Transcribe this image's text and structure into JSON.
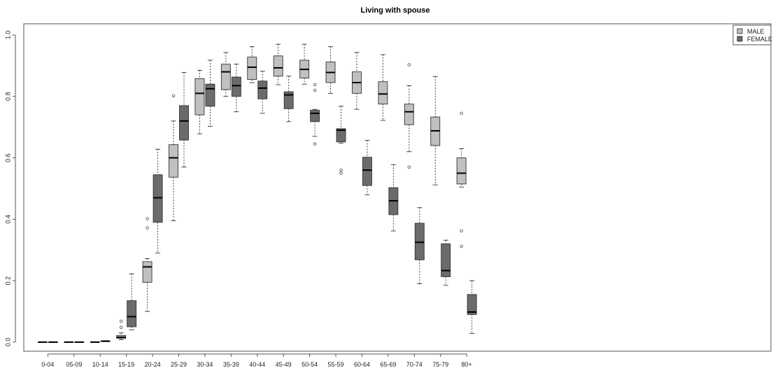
{
  "chart_data": {
    "type": "box",
    "title": "Living with spouse",
    "xlabel": "",
    "ylabel": "",
    "ylim": [
      0,
      1
    ],
    "y_ticks": [
      "0.0",
      "0.2",
      "0.4",
      "0.6",
      "0.8",
      "1.0"
    ],
    "categories": [
      "0-04",
      "05-09",
      "10-14",
      "15-19",
      "20-24",
      "25-29",
      "30-34",
      "35-39",
      "40-44",
      "45-49",
      "50-54",
      "55-59",
      "60-64",
      "65-69",
      "70-74",
      "75-79",
      "80+"
    ],
    "legend": {
      "position": "top-right"
    },
    "series": [
      {
        "name": "MALE",
        "color": "#c0c0c0",
        "boxes": [
          {
            "min": 0.0,
            "q1": 0.0,
            "median": 0.0,
            "q3": 0.0,
            "max": 0.0,
            "outliers": []
          },
          {
            "min": 0.0,
            "q1": 0.0,
            "median": 0.0,
            "q3": 0.0,
            "max": 0.0,
            "outliers": []
          },
          {
            "min": 0.0,
            "q1": 0.0,
            "median": 0.0,
            "q3": 0.0,
            "max": 0.0,
            "outliers": []
          },
          {
            "min": 0.008,
            "q1": 0.012,
            "median": 0.016,
            "q3": 0.022,
            "max": 0.03,
            "outliers": [
              0.048,
              0.068
            ]
          },
          {
            "min": 0.1,
            "q1": 0.195,
            "median": 0.245,
            "q3": 0.262,
            "max": 0.272,
            "outliers": [
              0.372,
              0.402
            ]
          },
          {
            "min": 0.395,
            "q1": 0.537,
            "median": 0.6,
            "q3": 0.643,
            "max": 0.72,
            "outliers": [
              0.802
            ]
          },
          {
            "min": 0.678,
            "q1": 0.74,
            "median": 0.81,
            "q3": 0.858,
            "max": 0.885,
            "outliers": []
          },
          {
            "min": 0.8,
            "q1": 0.822,
            "median": 0.88,
            "q3": 0.905,
            "max": 0.943,
            "outliers": []
          },
          {
            "min": 0.845,
            "q1": 0.855,
            "median": 0.895,
            "q3": 0.928,
            "max": 0.962,
            "outliers": []
          },
          {
            "min": 0.838,
            "q1": 0.866,
            "median": 0.893,
            "q3": 0.932,
            "max": 0.97,
            "outliers": []
          },
          {
            "min": 0.84,
            "q1": 0.86,
            "median": 0.888,
            "q3": 0.918,
            "max": 0.97,
            "outliers": []
          },
          {
            "min": 0.81,
            "q1": 0.845,
            "median": 0.878,
            "q3": 0.912,
            "max": 0.962,
            "outliers": []
          },
          {
            "min": 0.758,
            "q1": 0.81,
            "median": 0.845,
            "q3": 0.88,
            "max": 0.943,
            "outliers": []
          },
          {
            "min": 0.722,
            "q1": 0.775,
            "median": 0.808,
            "q3": 0.848,
            "max": 0.936,
            "outliers": []
          },
          {
            "min": 0.62,
            "q1": 0.708,
            "median": 0.75,
            "q3": 0.775,
            "max": 0.835,
            "outliers": [
              0.57,
              0.903
            ]
          },
          {
            "min": 0.512,
            "q1": 0.64,
            "median": 0.688,
            "q3": 0.733,
            "max": 0.865,
            "outliers": []
          },
          {
            "min": 0.505,
            "q1": 0.515,
            "median": 0.55,
            "q3": 0.6,
            "max": 0.63,
            "outliers": [
              0.312,
              0.362,
              0.745
            ]
          }
        ]
      },
      {
        "name": "FEMALE",
        "color": "#6b6b6b",
        "boxes": [
          {
            "min": 0.0,
            "q1": 0.0,
            "median": 0.0,
            "q3": 0.0,
            "max": 0.0,
            "outliers": []
          },
          {
            "min": 0.0,
            "q1": 0.0,
            "median": 0.0,
            "q3": 0.0,
            "max": 0.0,
            "outliers": []
          },
          {
            "min": 0.002,
            "q1": 0.002,
            "median": 0.003,
            "q3": 0.004,
            "max": 0.005,
            "outliers": []
          },
          {
            "min": 0.04,
            "q1": 0.05,
            "median": 0.083,
            "q3": 0.135,
            "max": 0.222,
            "outliers": []
          },
          {
            "min": 0.29,
            "q1": 0.39,
            "median": 0.47,
            "q3": 0.545,
            "max": 0.628,
            "outliers": []
          },
          {
            "min": 0.57,
            "q1": 0.658,
            "median": 0.72,
            "q3": 0.77,
            "max": 0.878,
            "outliers": []
          },
          {
            "min": 0.703,
            "q1": 0.768,
            "median": 0.825,
            "q3": 0.84,
            "max": 0.918,
            "outliers": []
          },
          {
            "min": 0.75,
            "q1": 0.8,
            "median": 0.835,
            "q3": 0.863,
            "max": 0.905,
            "outliers": []
          },
          {
            "min": 0.745,
            "q1": 0.792,
            "median": 0.827,
            "q3": 0.85,
            "max": 0.882,
            "outliers": []
          },
          {
            "min": 0.718,
            "q1": 0.76,
            "median": 0.805,
            "q3": 0.815,
            "max": 0.866,
            "outliers": []
          },
          {
            "min": 0.67,
            "q1": 0.718,
            "median": 0.745,
            "q3": 0.755,
            "max": 0.758,
            "outliers": [
              0.645,
              0.82,
              0.838
            ]
          },
          {
            "min": 0.648,
            "q1": 0.652,
            "median": 0.69,
            "q3": 0.695,
            "max": 0.768,
            "outliers": [
              0.55,
              0.56
            ]
          },
          {
            "min": 0.48,
            "q1": 0.51,
            "median": 0.56,
            "q3": 0.602,
            "max": 0.657,
            "outliers": []
          },
          {
            "min": 0.362,
            "q1": 0.415,
            "median": 0.46,
            "q3": 0.503,
            "max": 0.578,
            "outliers": []
          },
          {
            "min": 0.19,
            "q1": 0.268,
            "median": 0.325,
            "q3": 0.387,
            "max": 0.438,
            "outliers": []
          },
          {
            "min": 0.185,
            "q1": 0.213,
            "median": 0.233,
            "q3": 0.32,
            "max": 0.332,
            "outliers": []
          },
          {
            "min": 0.028,
            "q1": 0.09,
            "median": 0.098,
            "q3": 0.155,
            "max": 0.2,
            "outliers": []
          }
        ]
      }
    ]
  }
}
